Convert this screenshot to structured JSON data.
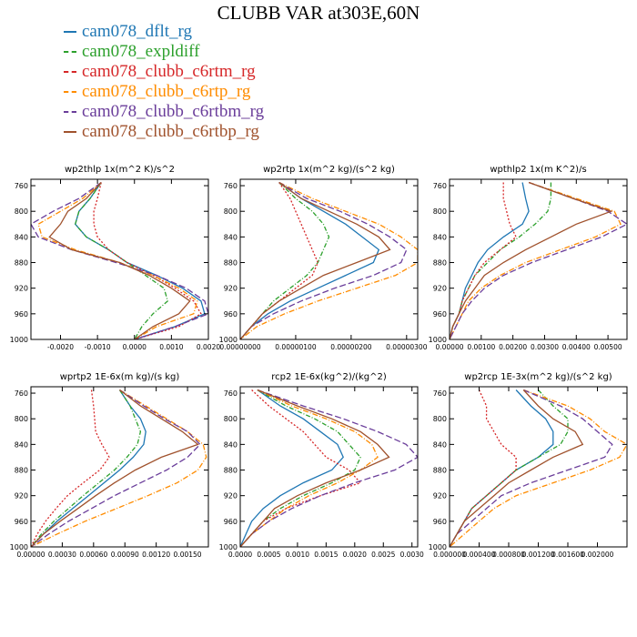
{
  "title": "CLUBB VAR at303E,60N",
  "colors": {
    "cam078_dflt_rg": "#1f77b4",
    "cam078_expldiff": "#2ca02c",
    "cam078_clubb_c6rtm_rg": "#d62728",
    "cam078_clubb_c6rtp_rg": "#ff8c00",
    "cam078_clubb_c6rtbm_rg": "#6a3d9a",
    "cam078_clubb_c6rtbp_rg": "#a0522d"
  },
  "legend": [
    {
      "name": "cam078_dflt_rg",
      "color": "#1f77b4",
      "dash": ""
    },
    {
      "name": "cam078_expldiff",
      "color": "#2ca02c",
      "dash": "5,2,1,2"
    },
    {
      "name": "cam078_clubb_c6rtm_rg",
      "color": "#d62728",
      "dash": "2,2"
    },
    {
      "name": "cam078_clubb_c6rtp_rg",
      "color": "#ff8c00",
      "dash": "6,2,1,2"
    },
    {
      "name": "cam078_clubb_c6rtbm_rg",
      "color": "#6a3d9a",
      "dash": "7,3"
    },
    {
      "name": "cam078_clubb_c6rtbp_rg",
      "color": "#a0522d",
      "dash": ""
    }
  ],
  "chart_data": [
    {
      "type": "line",
      "title": "wp2thlp   1x(m^2 K)/s^2",
      "ylim": [
        1000,
        750
      ],
      "yticks": [
        760,
        800,
        840,
        880,
        920,
        960,
        1000
      ],
      "xlim": [
        -0.0028,
        0.002
      ],
      "xticks": [
        -0.002,
        -0.001,
        0.0,
        0.001,
        0.002
      ],
      "xticklabels": [
        "-0.0020",
        "-0.0010",
        "0.0000",
        "0.0010",
        "0.0020"
      ],
      "y": [
        755,
        780,
        800,
        820,
        840,
        860,
        880,
        900,
        920,
        940,
        960,
        980,
        1000
      ],
      "series": [
        {
          "name": "cam078_dflt_rg",
          "values": [
            -0.0009,
            -0.0012,
            -0.0015,
            -0.0016,
            -0.0013,
            -0.0007,
            -0.0002,
            0.0006,
            0.0013,
            0.0018,
            0.0019,
            0.0011,
            0.0
          ]
        },
        {
          "name": "cam078_expldiff",
          "values": [
            -0.0009,
            -0.0012,
            -0.0015,
            -0.0016,
            -0.0013,
            -0.0007,
            -0.0002,
            0.0003,
            0.0008,
            0.0009,
            0.0005,
            0.0002,
            0.0
          ]
        },
        {
          "name": "cam078_clubb_c6rtm_rg",
          "values": [
            -0.0009,
            -0.001,
            -0.0011,
            -0.0011,
            -0.001,
            -0.0007,
            -0.0002,
            0.0005,
            0.0011,
            0.0016,
            0.0018,
            0.0012,
            0.0
          ]
        },
        {
          "name": "cam078_clubb_c6rtp_rg",
          "values": [
            -0.0009,
            -0.0014,
            -0.002,
            -0.0026,
            -0.0025,
            -0.0016,
            -0.0004,
            0.0005,
            0.0012,
            0.0017,
            0.0016,
            0.0006,
            0.0
          ]
        },
        {
          "name": "cam078_clubb_c6rtbm_rg",
          "values": [
            -0.0009,
            -0.0015,
            -0.0022,
            -0.0028,
            -0.0026,
            -0.0017,
            -0.0005,
            0.0006,
            0.0014,
            0.0019,
            0.002,
            0.0011,
            0.0
          ]
        },
        {
          "name": "cam078_clubb_c6rtbp_rg",
          "values": [
            -0.0009,
            -0.0013,
            -0.0018,
            -0.002,
            -0.0023,
            -0.0017,
            -0.0004,
            0.0004,
            0.001,
            0.0015,
            0.0012,
            0.0005,
            0.0
          ]
        }
      ]
    },
    {
      "type": "line",
      "title": "wp2rtp   1x(m^2 kg)/(s^2 kg)",
      "ylim": [
        1000,
        750
      ],
      "yticks": [
        760,
        800,
        840,
        880,
        920,
        960,
        1000
      ],
      "xlim": [
        0.0,
        3.2e-06
      ],
      "xticks": [
        0.0,
        1e-06,
        2e-06,
        3e-06
      ],
      "xticklabels": [
        "0.00000000",
        "0.00000100",
        "0.00000200",
        "0.00000300"
      ],
      "y": [
        755,
        780,
        800,
        820,
        840,
        860,
        880,
        900,
        920,
        940,
        960,
        980,
        1000
      ],
      "series": [
        {
          "name": "cam078_dflt_rg",
          "values": [
            7e-07,
            1.1e-06,
            1.5e-06,
            1.9e-06,
            2.2e-06,
            2.5e-06,
            2.4e-06,
            1.9e-06,
            1.4e-06,
            9e-07,
            5e-07,
            2e-07,
            0.0
          ]
        },
        {
          "name": "cam078_expldiff",
          "values": [
            7e-07,
            1e-06,
            1.3e-06,
            1.5e-06,
            1.6e-06,
            1.5e-06,
            1.4e-06,
            1.2e-06,
            9e-07,
            6e-07,
            4e-07,
            2e-07,
            0.0
          ]
        },
        {
          "name": "cam078_clubb_c6rtm_rg",
          "values": [
            7e-07,
            9e-07,
            1e-06,
            1.1e-06,
            1.2e-06,
            1.3e-06,
            1.4e-06,
            1.3e-06,
            1e-06,
            7e-07,
            4e-07,
            2e-07,
            0.0
          ]
        },
        {
          "name": "cam078_clubb_c6rtp_rg",
          "values": [
            7e-07,
            1.3e-06,
            1.9e-06,
            2.5e-06,
            2.9e-06,
            3.2e-06,
            3.2e-06,
            2.8e-06,
            2.1e-06,
            1.4e-06,
            8e-07,
            3e-07,
            0.0
          ]
        },
        {
          "name": "cam078_clubb_c6rtbm_rg",
          "values": [
            7e-07,
            1.2e-06,
            1.8e-06,
            2.3e-06,
            2.7e-06,
            3e-06,
            2.9e-06,
            2.4e-06,
            1.7e-06,
            1.1e-06,
            6e-07,
            2e-07,
            0.0
          ]
        },
        {
          "name": "cam078_clubb_c6rtbp_rg",
          "values": [
            7e-07,
            1.1e-06,
            1.6e-06,
            2.1e-06,
            2.5e-06,
            2.7e-06,
            2.1e-06,
            1.5e-06,
            1.1e-06,
            7e-07,
            4e-07,
            2e-07,
            0.0
          ]
        }
      ]
    },
    {
      "type": "line",
      "title": "wpthlp2   1x(m K^2)/s",
      "ylim": [
        1000,
        750
      ],
      "yticks": [
        760,
        800,
        840,
        880,
        920,
        960,
        1000
      ],
      "xlim": [
        0.0,
        0.0056
      ],
      "xticks": [
        0.0,
        0.001,
        0.002,
        0.003,
        0.004,
        0.005
      ],
      "xticklabels": [
        "0.00000",
        "0.00100",
        "0.00200",
        "0.00300",
        "0.00400",
        "0.00500"
      ],
      "y": [
        755,
        780,
        800,
        820,
        840,
        860,
        880,
        900,
        920,
        940,
        960,
        980,
        1000
      ],
      "series": [
        {
          "name": "cam078_dflt_rg",
          "values": [
            0.0023,
            0.0024,
            0.0025,
            0.0023,
            0.0017,
            0.0012,
            0.0009,
            0.0007,
            0.0005,
            0.0004,
            0.0003,
            0.0001,
            0.0
          ]
        },
        {
          "name": "cam078_expldiff",
          "values": [
            0.0032,
            0.0032,
            0.0031,
            0.0027,
            0.0022,
            0.0016,
            0.0012,
            0.0008,
            0.0006,
            0.0004,
            0.0003,
            0.0001,
            0.0
          ]
        },
        {
          "name": "cam078_clubb_c6rtm_rg",
          "values": [
            0.0017,
            0.0017,
            0.0018,
            0.0019,
            0.0021,
            0.0016,
            0.0011,
            0.0008,
            0.0006,
            0.0004,
            0.0003,
            0.0001,
            0.0
          ]
        },
        {
          "name": "cam078_clubb_c6rtp_rg",
          "values": [
            0.0025,
            0.004,
            0.0052,
            0.0054,
            0.0046,
            0.0035,
            0.0024,
            0.0016,
            0.001,
            0.0006,
            0.0004,
            0.0002,
            0.0
          ]
        },
        {
          "name": "cam078_clubb_c6rtbm_rg",
          "values": [
            0.0025,
            0.0039,
            0.005,
            0.0056,
            0.0048,
            0.0037,
            0.0026,
            0.0017,
            0.0011,
            0.0007,
            0.0004,
            0.0002,
            0.0
          ]
        },
        {
          "name": "cam078_clubb_c6rtbp_rg",
          "values": [
            0.0025,
            0.0039,
            0.0051,
            0.004,
            0.0032,
            0.0024,
            0.0017,
            0.0011,
            0.0008,
            0.0005,
            0.0003,
            0.0001,
            0.0
          ]
        }
      ]
    },
    {
      "type": "line",
      "title": "wprtp2   1E-6x(m kg)/(s kg)",
      "ylim": [
        1000,
        750
      ],
      "yticks": [
        760,
        800,
        840,
        880,
        920,
        960,
        1000
      ],
      "xlim": [
        0.0,
        0.0017
      ],
      "xticks": [
        0.0,
        0.0003,
        0.0006,
        0.0009,
        0.0012,
        0.0015
      ],
      "xticklabels": [
        "0.00000",
        "0.00030",
        "0.00060",
        "0.00090",
        "0.00120",
        "0.00150"
      ],
      "y": [
        755,
        780,
        800,
        820,
        840,
        860,
        880,
        900,
        920,
        940,
        960,
        980,
        1000
      ],
      "series": [
        {
          "name": "cam078_dflt_rg",
          "values": [
            0.00085,
            0.00095,
            0.00105,
            0.0011,
            0.00108,
            0.00098,
            0.00085,
            0.0007,
            0.00055,
            0.0004,
            0.00025,
            0.00012,
            0.0
          ]
        },
        {
          "name": "cam078_expldiff",
          "values": [
            0.00085,
            0.00095,
            0.001,
            0.00105,
            0.00102,
            0.00092,
            0.0008,
            0.00065,
            0.0005,
            0.00036,
            0.00022,
            0.0001,
            0.0
          ]
        },
        {
          "name": "cam078_clubb_c6rtm_rg",
          "values": [
            0.00058,
            0.0006,
            0.00061,
            0.00062,
            0.00068,
            0.00075,
            0.00066,
            0.0005,
            0.00035,
            0.00024,
            0.00014,
            6e-05,
            0.0
          ]
        },
        {
          "name": "cam078_clubb_c6rtp_rg",
          "values": [
            0.00085,
            0.0011,
            0.0013,
            0.0015,
            0.00165,
            0.00168,
            0.0016,
            0.0014,
            0.00112,
            0.00082,
            0.00052,
            0.00025,
            0.0
          ]
        },
        {
          "name": "cam078_clubb_c6rtbm_rg",
          "values": [
            0.00085,
            0.00108,
            0.00128,
            0.0015,
            0.00162,
            0.0015,
            0.0013,
            0.00105,
            0.0008,
            0.00058,
            0.00036,
            0.00017,
            0.0
          ]
        },
        {
          "name": "cam078_clubb_c6rtbp_rg",
          "values": [
            0.00085,
            0.00105,
            0.00125,
            0.00145,
            0.0016,
            0.00125,
            0.001,
            0.0008,
            0.00062,
            0.00045,
            0.00028,
            0.00012,
            0.0
          ]
        }
      ]
    },
    {
      "type": "line",
      "title": "rcp2   1E-6x(kg^2)/(kg^2)",
      "ylim": [
        1000,
        750
      ],
      "yticks": [
        760,
        800,
        840,
        880,
        920,
        960,
        1000
      ],
      "xlim": [
        0.0,
        0.0031
      ],
      "xticks": [
        0.0,
        0.0005,
        0.001,
        0.0015,
        0.002,
        0.0025,
        0.003
      ],
      "xticklabels": [
        "0.0000",
        "0.0005",
        "0.0010",
        "0.0015",
        "0.0020",
        "0.0025",
        "0.0030"
      ],
      "y": [
        755,
        780,
        800,
        820,
        840,
        860,
        880,
        900,
        920,
        940,
        960,
        980,
        1000
      ],
      "series": [
        {
          "name": "cam078_dflt_rg",
          "values": [
            0.0003,
            0.0007,
            0.0011,
            0.0014,
            0.0017,
            0.0018,
            0.0016,
            0.0011,
            0.0007,
            0.0004,
            0.0002,
            0.0001,
            0.0
          ]
        },
        {
          "name": "cam078_expldiff",
          "values": [
            0.0003,
            0.0008,
            0.0013,
            0.0017,
            0.0019,
            0.0021,
            0.002,
            0.0016,
            0.0011,
            0.0007,
            0.0004,
            0.0002,
            0.0
          ]
        },
        {
          "name": "cam078_clubb_c6rtm_rg",
          "values": [
            0.0002,
            0.0005,
            0.0008,
            0.0011,
            0.0013,
            0.0015,
            0.0019,
            0.0021,
            0.0014,
            0.0008,
            0.0004,
            0.0002,
            0.0
          ]
        },
        {
          "name": "cam078_clubb_c6rtp_rg",
          "values": [
            0.0003,
            0.0009,
            0.0015,
            0.002,
            0.0023,
            0.0024,
            0.0021,
            0.0017,
            0.0012,
            0.0008,
            0.0005,
            0.0002,
            0.0
          ]
        },
        {
          "name": "cam078_clubb_c6rtbm_rg",
          "values": [
            0.0003,
            0.0011,
            0.0018,
            0.0024,
            0.0029,
            0.0031,
            0.0027,
            0.002,
            0.0014,
            0.0009,
            0.0005,
            0.0002,
            0.0
          ]
        },
        {
          "name": "cam078_clubb_c6rtbp_rg",
          "values": [
            0.0003,
            0.001,
            0.0016,
            0.0021,
            0.0024,
            0.0026,
            0.0021,
            0.0015,
            0.001,
            0.0006,
            0.0004,
            0.0002,
            0.0
          ]
        }
      ]
    },
    {
      "type": "line",
      "title": "wp2rcp   1E-3x(m^2 kg)/(s^2 kg)",
      "ylim": [
        1000,
        750
      ],
      "yticks": [
        760,
        800,
        840,
        880,
        920,
        960,
        1000
      ],
      "xlim": [
        0.0,
        0.0024
      ],
      "xticks": [
        0.0,
        0.0004,
        0.0008,
        0.0012,
        0.0016,
        0.002
      ],
      "xticklabels": [
        "0.000000",
        "0.000400",
        "0.000800",
        "0.001200",
        "0.001600",
        "0.002000"
      ],
      "y": [
        755,
        780,
        800,
        820,
        840,
        860,
        880,
        900,
        920,
        940,
        960,
        980,
        1000
      ],
      "series": [
        {
          "name": "cam078_dflt_rg",
          "values": [
            0.0009,
            0.0011,
            0.0013,
            0.0014,
            0.0014,
            0.0012,
            0.0009,
            0.0007,
            0.0005,
            0.0003,
            0.0002,
            0.0001,
            0.0
          ]
        },
        {
          "name": "cam078_expldiff",
          "values": [
            0.0012,
            0.0014,
            0.0016,
            0.0016,
            0.0015,
            0.0012,
            0.0009,
            0.0007,
            0.0005,
            0.0003,
            0.0002,
            0.0001,
            0.0
          ]
        },
        {
          "name": "cam078_clubb_c6rtm_rg",
          "values": [
            0.0004,
            0.0005,
            0.0005,
            0.0006,
            0.0007,
            0.0009,
            0.0009,
            0.0007,
            0.0005,
            0.0003,
            0.0002,
            0.0001,
            0.0
          ]
        },
        {
          "name": "cam078_clubb_c6rtp_rg",
          "values": [
            0.001,
            0.0016,
            0.0019,
            0.0021,
            0.0024,
            0.0023,
            0.0019,
            0.0014,
            0.0009,
            0.0006,
            0.0004,
            0.0002,
            0.0
          ]
        },
        {
          "name": "cam078_clubb_c6rtbm_rg",
          "values": [
            0.001,
            0.0015,
            0.0018,
            0.002,
            0.0022,
            0.0021,
            0.0016,
            0.0011,
            0.0007,
            0.0005,
            0.0003,
            0.0001,
            0.0
          ]
        },
        {
          "name": "cam078_clubb_c6rtbp_rg",
          "values": [
            0.001,
            0.0012,
            0.0014,
            0.0017,
            0.0018,
            0.0014,
            0.0011,
            0.0008,
            0.0006,
            0.0004,
            0.0002,
            0.0001,
            0.0
          ]
        }
      ]
    }
  ]
}
